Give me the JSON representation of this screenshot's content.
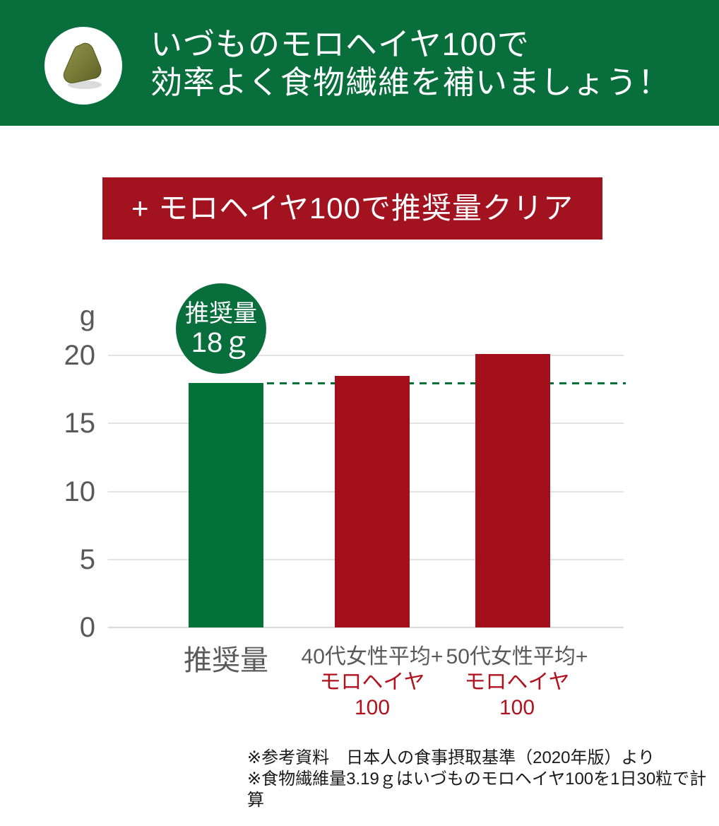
{
  "header": {
    "title_line1": "いづものモロヘイヤ100で",
    "title_line2": "効率よく食物繊維を補いましょう！",
    "icon": "morroheiya-tablet-icon",
    "bg_color": "#086e3b",
    "text_color": "#ffffff"
  },
  "banner": {
    "label": "+ モロヘイヤ100で推奨量クリア",
    "bg_color": "#a2121f",
    "text_color": "#ffffff"
  },
  "badge": {
    "line1": "推奨量",
    "line2": "18ｇ",
    "bg_color": "#086e3b"
  },
  "chart_data": {
    "type": "bar",
    "title": "+ モロヘイヤ100で推奨量クリア",
    "unit_label": "g",
    "categories": [
      "推奨量",
      "40代女性平均+モロヘイヤ100",
      "50代女性平均+モロヘイヤ100"
    ],
    "category_labels": [
      {
        "line1": "推奨量"
      },
      {
        "line1": "40代女性平均+",
        "line2": "モロヘイヤ",
        "line3": "100"
      },
      {
        "line1": "50代女性平均+",
        "line2": "モロヘイヤ",
        "line3": "100"
      }
    ],
    "values": [
      18,
      18.5,
      20.1
    ],
    "bar_colors": [
      "#047139",
      "#a30f1b",
      "#a30f1b"
    ],
    "ylabel": "g",
    "ylim": [
      0,
      21
    ],
    "yticks": [
      0,
      5,
      10,
      15,
      20
    ],
    "grid": true,
    "legend_position": "none",
    "reference_line": {
      "value": 18,
      "label": "推奨量18ｇ",
      "style": "dashed",
      "color": "#00703a"
    },
    "tick_color": "#595959",
    "gridline_color": "#e3e3e3"
  },
  "footnotes": {
    "line1": "※参考資料　日本人の食事摂取基準（2020年版）より",
    "line2": "※食物繊維量3.19ｇはいづものモロヘイヤ100を1日30粒で計算"
  }
}
